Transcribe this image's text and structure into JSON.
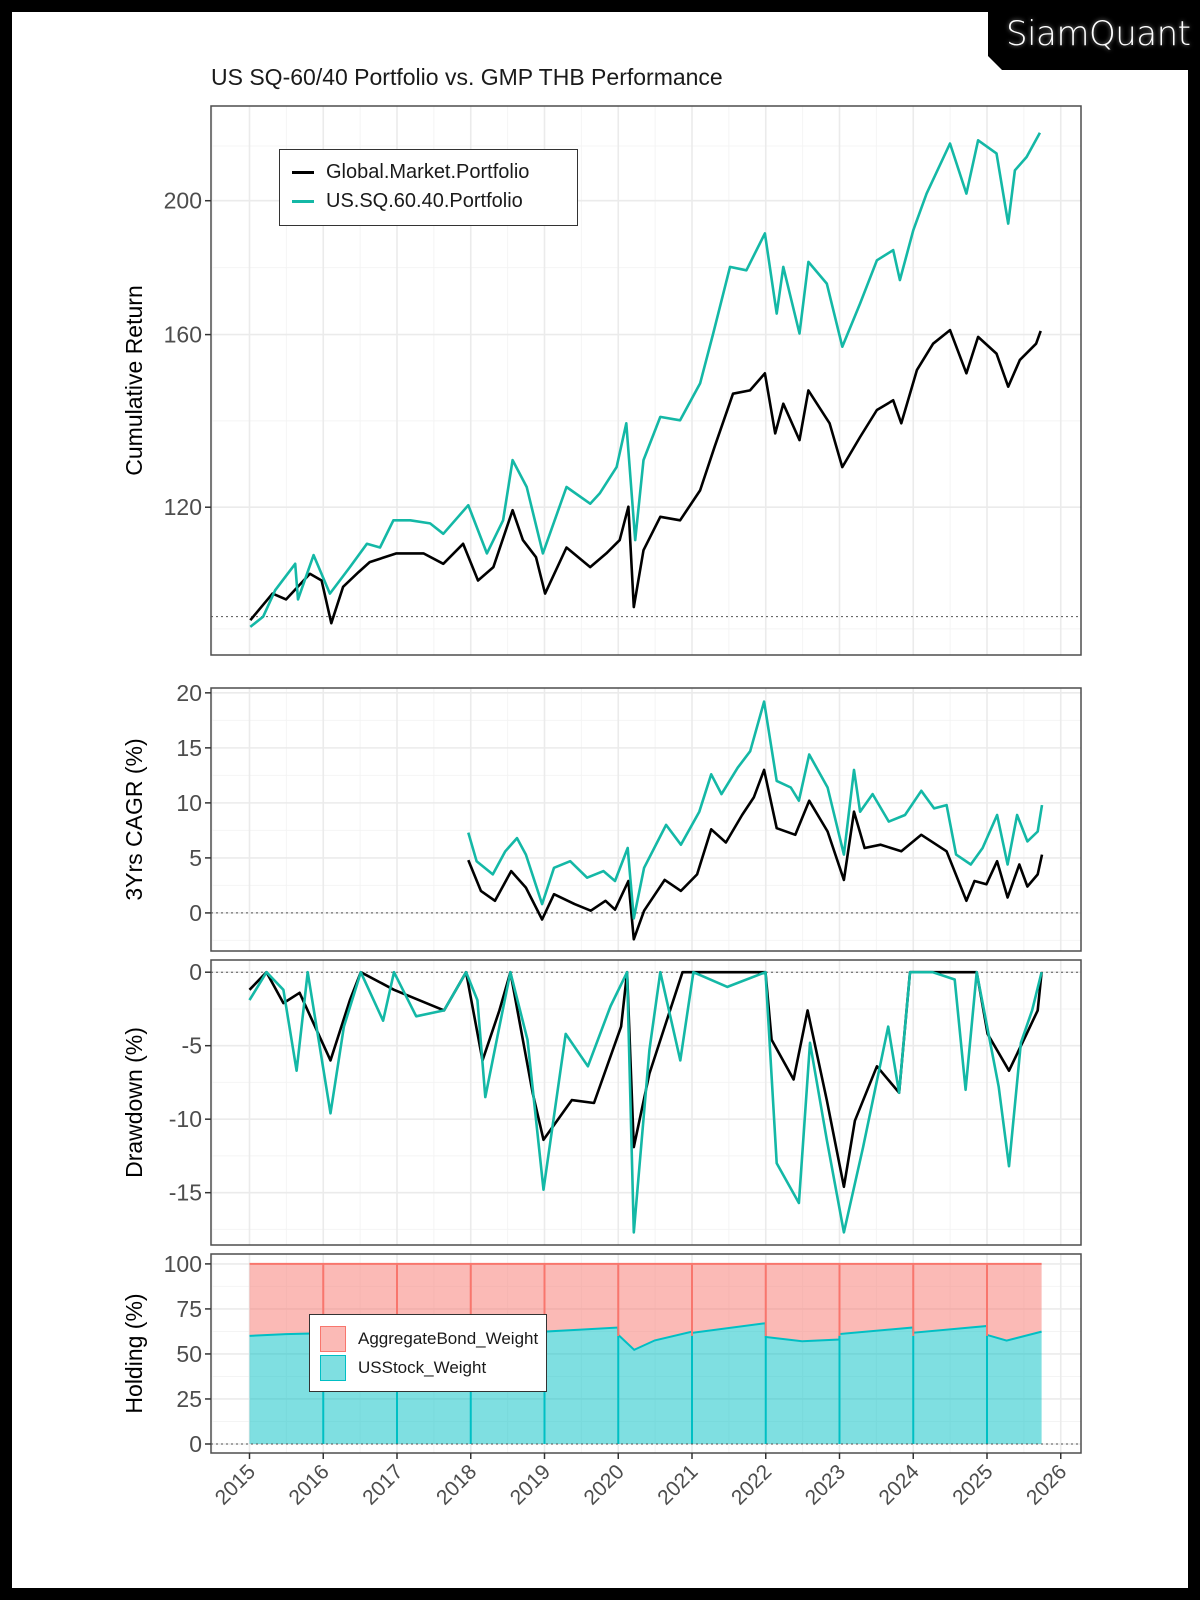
{
  "brand": {
    "logo_text": "SiamQuant"
  },
  "title": "US SQ-60/40 Portfolio vs. GMP THB Performance",
  "chart_data": [
    {
      "type": "line",
      "title": "US SQ-60/40 Portfolio vs. GMP THB Performance",
      "ylabel": "Cumulative Return",
      "y_scale": "log",
      "ylim": [
        93.8,
        234.2
      ],
      "xlim": [
        "2014-06-24",
        "2026-04-08"
      ],
      "y_ticks": [
        "120",
        "160",
        "200"
      ],
      "reference_line": 100,
      "grid": true,
      "legend": "top-left",
      "series": [
        {
          "name": "Global.Market.Portfolio",
          "color": "#000000",
          "dates": [
            "2015-01-05",
            "2015-04-25",
            "2015-07-01",
            "2015-10-27",
            "2015-12-24",
            "2016-02-10",
            "2016-04-08",
            "2016-06-24",
            "2016-08-18",
            "2016-12-28",
            "2017-05-12",
            "2017-08-18",
            "2017-11-24",
            "2018-02-06",
            "2018-04-23",
            "2018-07-27",
            "2018-09-16",
            "2018-11-20",
            "2019-01-04",
            "2019-04-20",
            "2019-08-15",
            "2019-11-03",
            "2020-01-08",
            "2020-02-20",
            "2020-03-18",
            "2020-05-05",
            "2020-07-27",
            "2020-11-02",
            "2021-02-10",
            "2021-04-23",
            "2021-07-23",
            "2021-10-15",
            "2021-12-28",
            "2022-02-17",
            "2022-03-29",
            "2022-06-17",
            "2022-07-31",
            "2022-11-13",
            "2023-01-15",
            "2023-04-13",
            "2023-07-05",
            "2023-09-24",
            "2023-11-03",
            "2024-01-19",
            "2024-04-08",
            "2024-07-01",
            "2024-09-20",
            "2024-11-17",
            "2025-02-17",
            "2025-04-16",
            "2025-06-13",
            "2025-09-01",
            "2025-09-24"
          ],
          "values": [
            99.4,
            103.9,
            102.9,
            107.4,
            106.2,
            98.9,
            105.1,
            107.7,
            109.5,
            111.1,
            111.1,
            109.2,
            112.9,
            106.2,
            108.6,
            119.4,
            113.6,
            110.4,
            103.9,
            112.2,
            108.6,
            111.1,
            113.6,
            120.1,
            101.6,
            111.7,
            118.1,
            117.4,
            123.4,
            132.7,
            145.0,
            145.8,
            150.0,
            135.7,
            142.6,
            134.2,
            145.8,
            138.0,
            128.3,
            134.9,
            141.1,
            143.4,
            138.0,
            150.8,
            157.6,
            161.2,
            150.0,
            159.4,
            155.0,
            146.7,
            153.4,
            157.6,
            161.0
          ]
        },
        {
          "name": "US.SQ.60.40.Portfolio",
          "color": "#14B8A6",
          "dates": [
            "2015-01-05",
            "2015-03-10",
            "2015-05-08",
            "2015-08-15",
            "2015-08-29",
            "2015-11-14",
            "2016-02-03",
            "2016-05-12",
            "2016-08-04",
            "2016-10-08",
            "2016-12-13",
            "2017-03-08",
            "2017-06-14",
            "2017-08-18",
            "2017-12-20",
            "2018-03-22",
            "2018-06-10",
            "2018-07-27",
            "2018-10-05",
            "2018-12-24",
            "2019-04-20",
            "2019-08-15",
            "2019-10-01",
            "2019-12-24",
            "2020-02-10",
            "2020-03-25",
            "2020-05-05",
            "2020-07-27",
            "2020-11-02",
            "2021-02-10",
            "2021-04-16",
            "2021-07-08",
            "2021-09-27",
            "2021-12-28",
            "2022-02-24",
            "2022-03-29",
            "2022-06-17",
            "2022-07-31",
            "2022-10-30",
            "2023-01-15",
            "2023-04-13",
            "2023-07-05",
            "2023-09-24",
            "2023-10-27",
            "2024-01-01",
            "2024-03-07",
            "2024-07-01",
            "2024-09-20",
            "2024-11-17",
            "2025-02-17",
            "2025-04-16",
            "2025-05-19",
            "2025-07-16",
            "2025-09-20"
          ],
          "values": [
            98.3,
            100.0,
            104.5,
            109.2,
            102.9,
            110.8,
            103.9,
            108.6,
            112.9,
            112.2,
            117.4,
            117.4,
            116.8,
            114.8,
            120.4,
            111.1,
            117.4,
            129.8,
            124.1,
            111.1,
            124.1,
            120.7,
            122.8,
            128.3,
            138.0,
            113.6,
            129.8,
            139.5,
            138.7,
            147.5,
            160.3,
            179.1,
            178.1,
            189.4,
            165.7,
            179.1,
            160.3,
            180.6,
            174.2,
            156.8,
            168.5,
            181.1,
            184.2,
            175.2,
            190.4,
            202.4,
            220.0,
            202.4,
            221.2,
            216.4,
            192.5,
            210.4,
            215.1,
            224.0
          ]
        }
      ]
    },
    {
      "type": "line",
      "ylabel": "3Yrs CAGR (%)",
      "ylim": [
        -3.46,
        20.44
      ],
      "xlim": [
        "2014-06-24",
        "2026-04-08"
      ],
      "y_ticks": [
        "0",
        "5",
        "10",
        "15",
        "20"
      ],
      "reference_line": 0,
      "grid": true,
      "series": [
        {
          "color": "#000000",
          "dates": [
            "2017-12-20",
            "2018-02-20",
            "2018-05-01",
            "2018-07-20",
            "2018-10-01",
            "2018-12-20",
            "2019-02-17",
            "2019-05-30",
            "2019-08-18",
            "2019-10-30",
            "2019-12-16",
            "2020-02-20",
            "2020-03-18",
            "2020-05-08",
            "2020-08-18",
            "2020-11-06",
            "2021-01-26",
            "2021-04-06",
            "2021-06-18",
            "2021-09-06",
            "2021-11-03",
            "2021-12-24",
            "2022-02-24",
            "2022-05-27",
            "2022-08-04",
            "2022-11-03",
            "2023-01-23",
            "2023-03-14",
            "2023-05-05",
            "2023-07-24",
            "2023-11-03",
            "2024-02-10",
            "2024-06-14",
            "2024-09-20",
            "2024-10-30",
            "2024-12-28",
            "2025-02-20",
            "2025-04-13",
            "2025-06-10",
            "2025-07-20",
            "2025-09-09",
            "2025-09-30"
          ],
          "values": [
            4.8,
            2.0,
            1.1,
            3.8,
            2.3,
            -0.6,
            1.7,
            0.8,
            0.2,
            1.1,
            0.3,
            2.9,
            -2.4,
            0.2,
            3.0,
            2.0,
            3.5,
            7.6,
            6.4,
            8.9,
            10.5,
            13.0,
            7.7,
            7.1,
            10.2,
            7.4,
            3.0,
            9.2,
            5.9,
            6.2,
            5.6,
            7.1,
            5.6,
            1.1,
            2.9,
            2.6,
            4.7,
            1.4,
            4.4,
            2.4,
            3.5,
            5.3
          ]
        },
        {
          "color": "#14B8A6",
          "dates": [
            "2017-12-20",
            "2018-01-30",
            "2018-04-20",
            "2018-06-21",
            "2018-08-18",
            "2018-10-01",
            "2018-12-20",
            "2019-02-17",
            "2019-05-08",
            "2019-07-31",
            "2019-10-20",
            "2019-12-16",
            "2020-02-17",
            "2020-03-18",
            "2020-05-08",
            "2020-08-25",
            "2020-11-06",
            "2021-02-06",
            "2021-04-06",
            "2021-05-27",
            "2021-08-15",
            "2021-10-16",
            "2021-12-24",
            "2022-02-24",
            "2022-05-05",
            "2022-06-14",
            "2022-08-04",
            "2022-11-03",
            "2023-01-23",
            "2023-03-14",
            "2023-04-13",
            "2023-06-14",
            "2023-09-02",
            "2023-11-21",
            "2024-02-10",
            "2024-04-13",
            "2024-06-14",
            "2024-07-31",
            "2024-10-12",
            "2024-12-09",
            "2025-02-20",
            "2025-04-13",
            "2025-05-30",
            "2025-07-20",
            "2025-09-09",
            "2025-09-30"
          ],
          "values": [
            7.3,
            4.7,
            3.5,
            5.6,
            6.8,
            5.3,
            0.8,
            4.1,
            4.7,
            3.2,
            3.8,
            2.9,
            5.9,
            -0.5,
            4.1,
            8.0,
            6.2,
            9.2,
            12.6,
            10.8,
            13.2,
            14.7,
            19.2,
            12.0,
            11.4,
            10.2,
            14.4,
            11.4,
            5.3,
            13.0,
            9.2,
            10.8,
            8.3,
            8.9,
            11.1,
            9.5,
            9.8,
            5.3,
            4.4,
            5.9,
            8.9,
            4.4,
            8.9,
            6.5,
            7.4,
            9.8
          ]
        }
      ]
    },
    {
      "type": "line",
      "ylabel": "Drawdown (%)",
      "ylim": [
        -18.56,
        0.83
      ],
      "xlim": [
        "2014-06-24",
        "2026-04-08"
      ],
      "y_ticks": [
        "0",
        "-5",
        "-10",
        "-15"
      ],
      "reference_line": 0,
      "grid": true,
      "series": [
        {
          "color": "#000000",
          "dates": [
            "2015-01-01",
            "2015-03-26",
            "2015-06-18",
            "2015-09-06",
            "2016-02-06",
            "2016-05-12",
            "2016-07-05",
            "2016-12-16",
            "2017-08-22",
            "2017-12-09",
            "2018-02-28",
            "2018-05-23",
            "2018-07-16",
            "2018-11-03",
            "2018-12-27",
            "2019-05-16",
            "2019-09-03",
            "2020-01-15",
            "2020-02-14",
            "2020-03-18",
            "2020-06-03",
            "2020-11-14",
            "2021-12-31",
            "2022-01-30",
            "2022-05-19",
            "2022-07-27",
            "2022-10-30",
            "2023-01-23",
            "2023-03-18",
            "2023-07-05",
            "2023-10-23",
            "2023-12-16",
            "2024-11-10",
            "2025-01-04",
            "2025-04-20",
            "2025-07-16",
            "2025-09-09",
            "2025-09-28"
          ],
          "values": [
            -1.2,
            0,
            -2.1,
            -1.4,
            -6.0,
            -1.9,
            0,
            -1.2,
            -2.6,
            0,
            -6.0,
            -2.6,
            0,
            -8.2,
            -11.4,
            -8.7,
            -8.9,
            -3.7,
            0,
            -11.9,
            -6.9,
            0,
            0,
            -4.6,
            -7.3,
            -2.6,
            -8.7,
            -14.6,
            -10.1,
            -6.4,
            -8.2,
            0,
            0,
            -4.2,
            -6.7,
            -4.2,
            -2.6,
            0
          ]
        },
        {
          "color": "#14B8A6",
          "dates": [
            "2015-01-01",
            "2015-03-26",
            "2015-06-18",
            "2015-08-22",
            "2015-10-16",
            "2016-02-06",
            "2016-04-12",
            "2016-07-05",
            "2016-10-23",
            "2016-12-16",
            "2017-04-06",
            "2017-08-22",
            "2017-12-09",
            "2018-02-03",
            "2018-03-14",
            "2018-05-23",
            "2018-07-16",
            "2018-10-09",
            "2018-12-27",
            "2019-04-16",
            "2019-08-04",
            "2019-11-24",
            "2020-02-14",
            "2020-03-18",
            "2020-06-03",
            "2020-07-27",
            "2020-11-03",
            "2021-01-08",
            "2021-06-25",
            "2021-12-31",
            "2022-02-24",
            "2022-06-14",
            "2022-08-08",
            "2022-10-30",
            "2023-01-23",
            "2023-04-28",
            "2023-08-30",
            "2023-10-23",
            "2023-12-16",
            "2024-04-06",
            "2024-07-24",
            "2024-09-16",
            "2024-11-10",
            "2025-02-28",
            "2025-04-20",
            "2025-06-18",
            "2025-08-12",
            "2025-09-28"
          ],
          "values": [
            -1.9,
            0,
            -1.2,
            -6.7,
            0,
            -9.6,
            -3.7,
            0,
            -3.3,
            0,
            -3.0,
            -2.6,
            0,
            -1.9,
            -8.5,
            -3.7,
            0,
            -4.6,
            -14.8,
            -4.2,
            -6.4,
            -2.3,
            0,
            -17.7,
            -5.3,
            0,
            -6.0,
            0,
            -1.0,
            0,
            -13.0,
            -15.7,
            -4.8,
            -11.4,
            -17.7,
            -11.9,
            -3.7,
            -8.2,
            0,
            0,
            -0.5,
            -8.0,
            0,
            -7.8,
            -13.2,
            -4.8,
            -2.6,
            0
          ]
        }
      ]
    },
    {
      "type": "area",
      "stacked": true,
      "ylabel": "Holding (%)",
      "ylim": [
        -5,
        105.5
      ],
      "xlim": [
        "2014-06-24",
        "2026-04-08"
      ],
      "y_ticks": [
        "0",
        "25",
        "50",
        "75",
        "100"
      ],
      "x_ticks": [
        "2015",
        "2016",
        "2017",
        "2018",
        "2019",
        "2020",
        "2021",
        "2022",
        "2023",
        "2024",
        "2025",
        "2026"
      ],
      "reference_line": 0,
      "grid": true,
      "legend": "center-left",
      "dates": [
        "2015-01-01",
        "2015-06-30",
        "2015-12-31",
        "2016-01-01",
        "2016-06-30",
        "2016-12-31",
        "2017-01-01",
        "2017-12-31",
        "2018-01-01",
        "2018-12-31",
        "2019-01-01",
        "2019-06-30",
        "2019-12-31",
        "2020-01-01",
        "2020-03-20",
        "2020-06-30",
        "2020-12-31",
        "2021-01-01",
        "2021-12-31",
        "2022-01-01",
        "2022-06-30",
        "2022-12-31",
        "2023-01-01",
        "2023-12-31",
        "2024-01-01",
        "2024-12-31",
        "2025-01-01",
        "2025-04-08",
        "2025-09-28"
      ],
      "series": [
        {
          "name": "AggregateBond_Weight",
          "color": "#F8766D",
          "values": [
            40.0,
            39.0,
            38.5,
            40.5,
            39.5,
            38.0,
            40.0,
            37.0,
            39.0,
            38.5,
            37.6,
            36.5,
            35.3,
            39.4,
            47.7,
            42.5,
            37.6,
            38.3,
            32.9,
            40.6,
            43.0,
            42.0,
            38.9,
            35.3,
            38.2,
            34.5,
            39.4,
            42.6,
            37.6
          ]
        },
        {
          "name": "USStock_Weight",
          "color": "#00BFC4",
          "values": [
            60.0,
            61.0,
            61.5,
            59.5,
            60.5,
            62.0,
            60.0,
            63.0,
            61.0,
            61.5,
            62.4,
            63.5,
            64.7,
            60.6,
            52.3,
            57.5,
            62.4,
            61.7,
            67.1,
            59.4,
            57.0,
            58.0,
            61.1,
            64.7,
            61.8,
            65.5,
            60.6,
            57.4,
            62.4
          ]
        }
      ]
    }
  ]
}
